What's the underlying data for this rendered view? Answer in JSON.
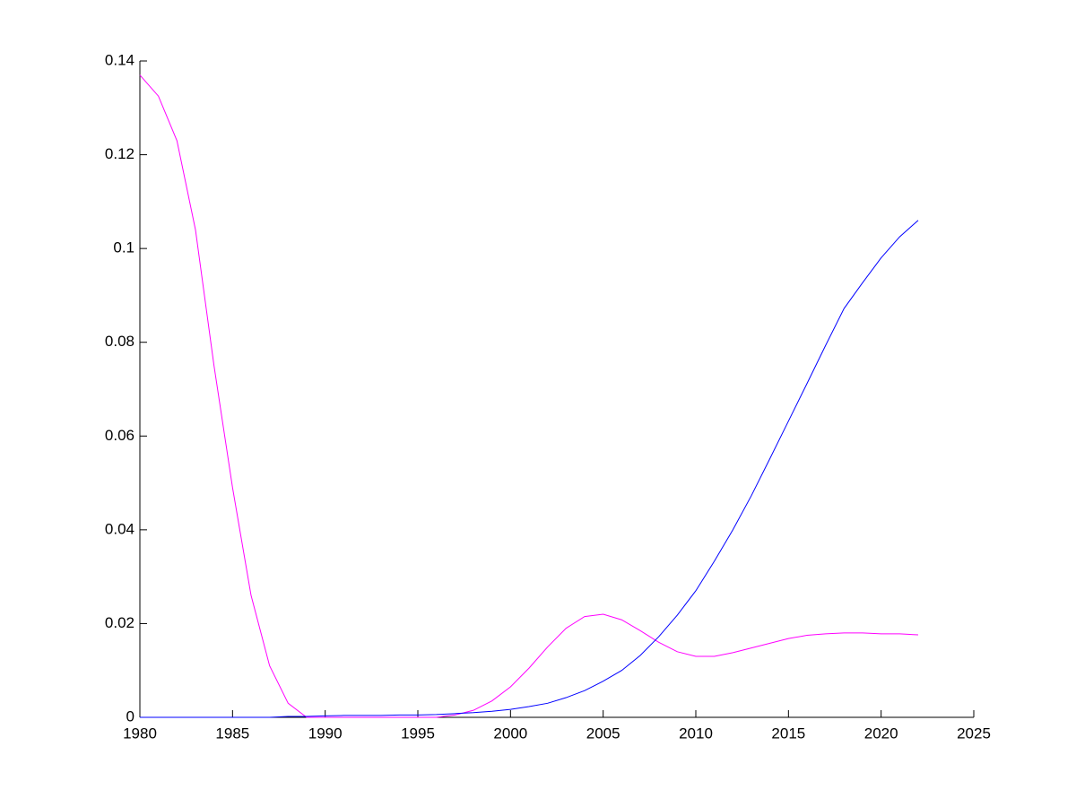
{
  "chart_data": {
    "type": "line",
    "x": [
      1980,
      1981,
      1982,
      1983,
      1984,
      1985,
      1986,
      1987,
      1988,
      1989,
      1990,
      1991,
      1992,
      1993,
      1994,
      1995,
      1996,
      1997,
      1998,
      1999,
      2000,
      2001,
      2002,
      2003,
      2004,
      2005,
      2006,
      2007,
      2008,
      2009,
      2010,
      2011,
      2012,
      2013,
      2014,
      2015,
      2016,
      2017,
      2018,
      2019,
      2020,
      2021,
      2022
    ],
    "series": [
      {
        "color": "#ff00ff",
        "values": [
          0.137,
          0.1325,
          0.123,
          0.104,
          0.075,
          0.049,
          0.026,
          0.011,
          0.003,
          0,
          0,
          0,
          0,
          0,
          0,
          0,
          0,
          0.0005,
          0.0015,
          0.0035,
          0.0065,
          0.0105,
          0.015,
          0.019,
          0.0215,
          0.022,
          0.0208,
          0.0185,
          0.016,
          0.014,
          0.013,
          0.013,
          0.0138,
          0.0148,
          0.0158,
          0.0168,
          0.0175,
          0.0178,
          0.018,
          0.018,
          0.0178,
          0.0178,
          0.0176
        ]
      },
      {
        "color": "#0000ff",
        "values": [
          0,
          0,
          0,
          0,
          0,
          0,
          0,
          0,
          0.0002,
          0.0002,
          0.0003,
          0.0004,
          0.0004,
          0.0004,
          0.0005,
          0.0005,
          0.0006,
          0.0008,
          0.001,
          0.0013,
          0.0017,
          0.0023,
          0.003,
          0.0042,
          0.0057,
          0.0077,
          0.01,
          0.0132,
          0.0172,
          0.0218,
          0.027,
          0.0333,
          0.04,
          0.0473,
          0.0552,
          0.0632,
          0.0712,
          0.0793,
          0.0872,
          0.0927,
          0.098,
          0.1025,
          0.106
        ]
      }
    ],
    "xlim": [
      1980,
      2025
    ],
    "xticks": [
      1980,
      1985,
      1990,
      1995,
      2000,
      2005,
      2010,
      2015,
      2020,
      2025
    ],
    "ylim": [
      0,
      0.14
    ],
    "yticks": [
      0,
      0.02,
      0.04,
      0.06,
      0.08,
      0.1,
      0.12,
      0.14
    ]
  }
}
